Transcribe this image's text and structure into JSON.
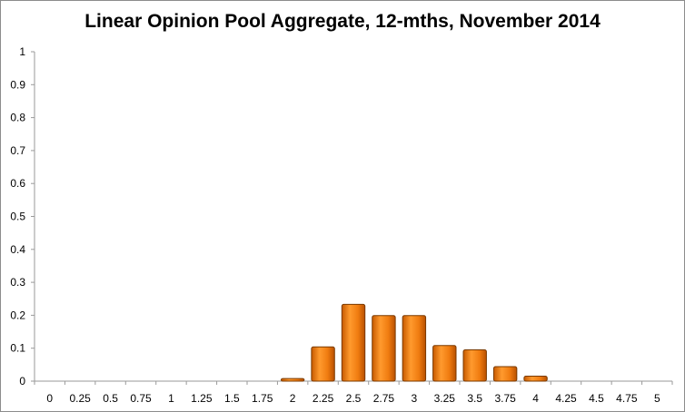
{
  "chart_data": {
    "type": "bar",
    "title": "Linear Opinion Pool Aggregate, 12-mths, November 2014",
    "xlabel": "",
    "ylabel": "",
    "categories": [
      "0",
      "0.25",
      "0.5",
      "0.75",
      "1",
      "1.25",
      "1.5",
      "1.75",
      "2",
      "2.25",
      "2.5",
      "2.75",
      "3",
      "3.25",
      "3.5",
      "3.75",
      "4",
      "4.25",
      "4.5",
      "4.75",
      "5"
    ],
    "values": [
      0,
      0,
      0,
      0,
      0,
      0,
      0,
      0,
      0.008,
      0.104,
      0.233,
      0.199,
      0.199,
      0.108,
      0.095,
      0.044,
      0.015,
      0,
      0,
      0,
      0
    ],
    "ylim": [
      0,
      1
    ],
    "yticks": [
      "0",
      "0.1",
      "0.2",
      "0.3",
      "0.4",
      "0.5",
      "0.6",
      "0.7",
      "0.8",
      "0.9",
      "1"
    ],
    "grid": false,
    "legend": "none",
    "bar_color": "#f07c10",
    "bar_edge_color": "#7a3a00"
  }
}
